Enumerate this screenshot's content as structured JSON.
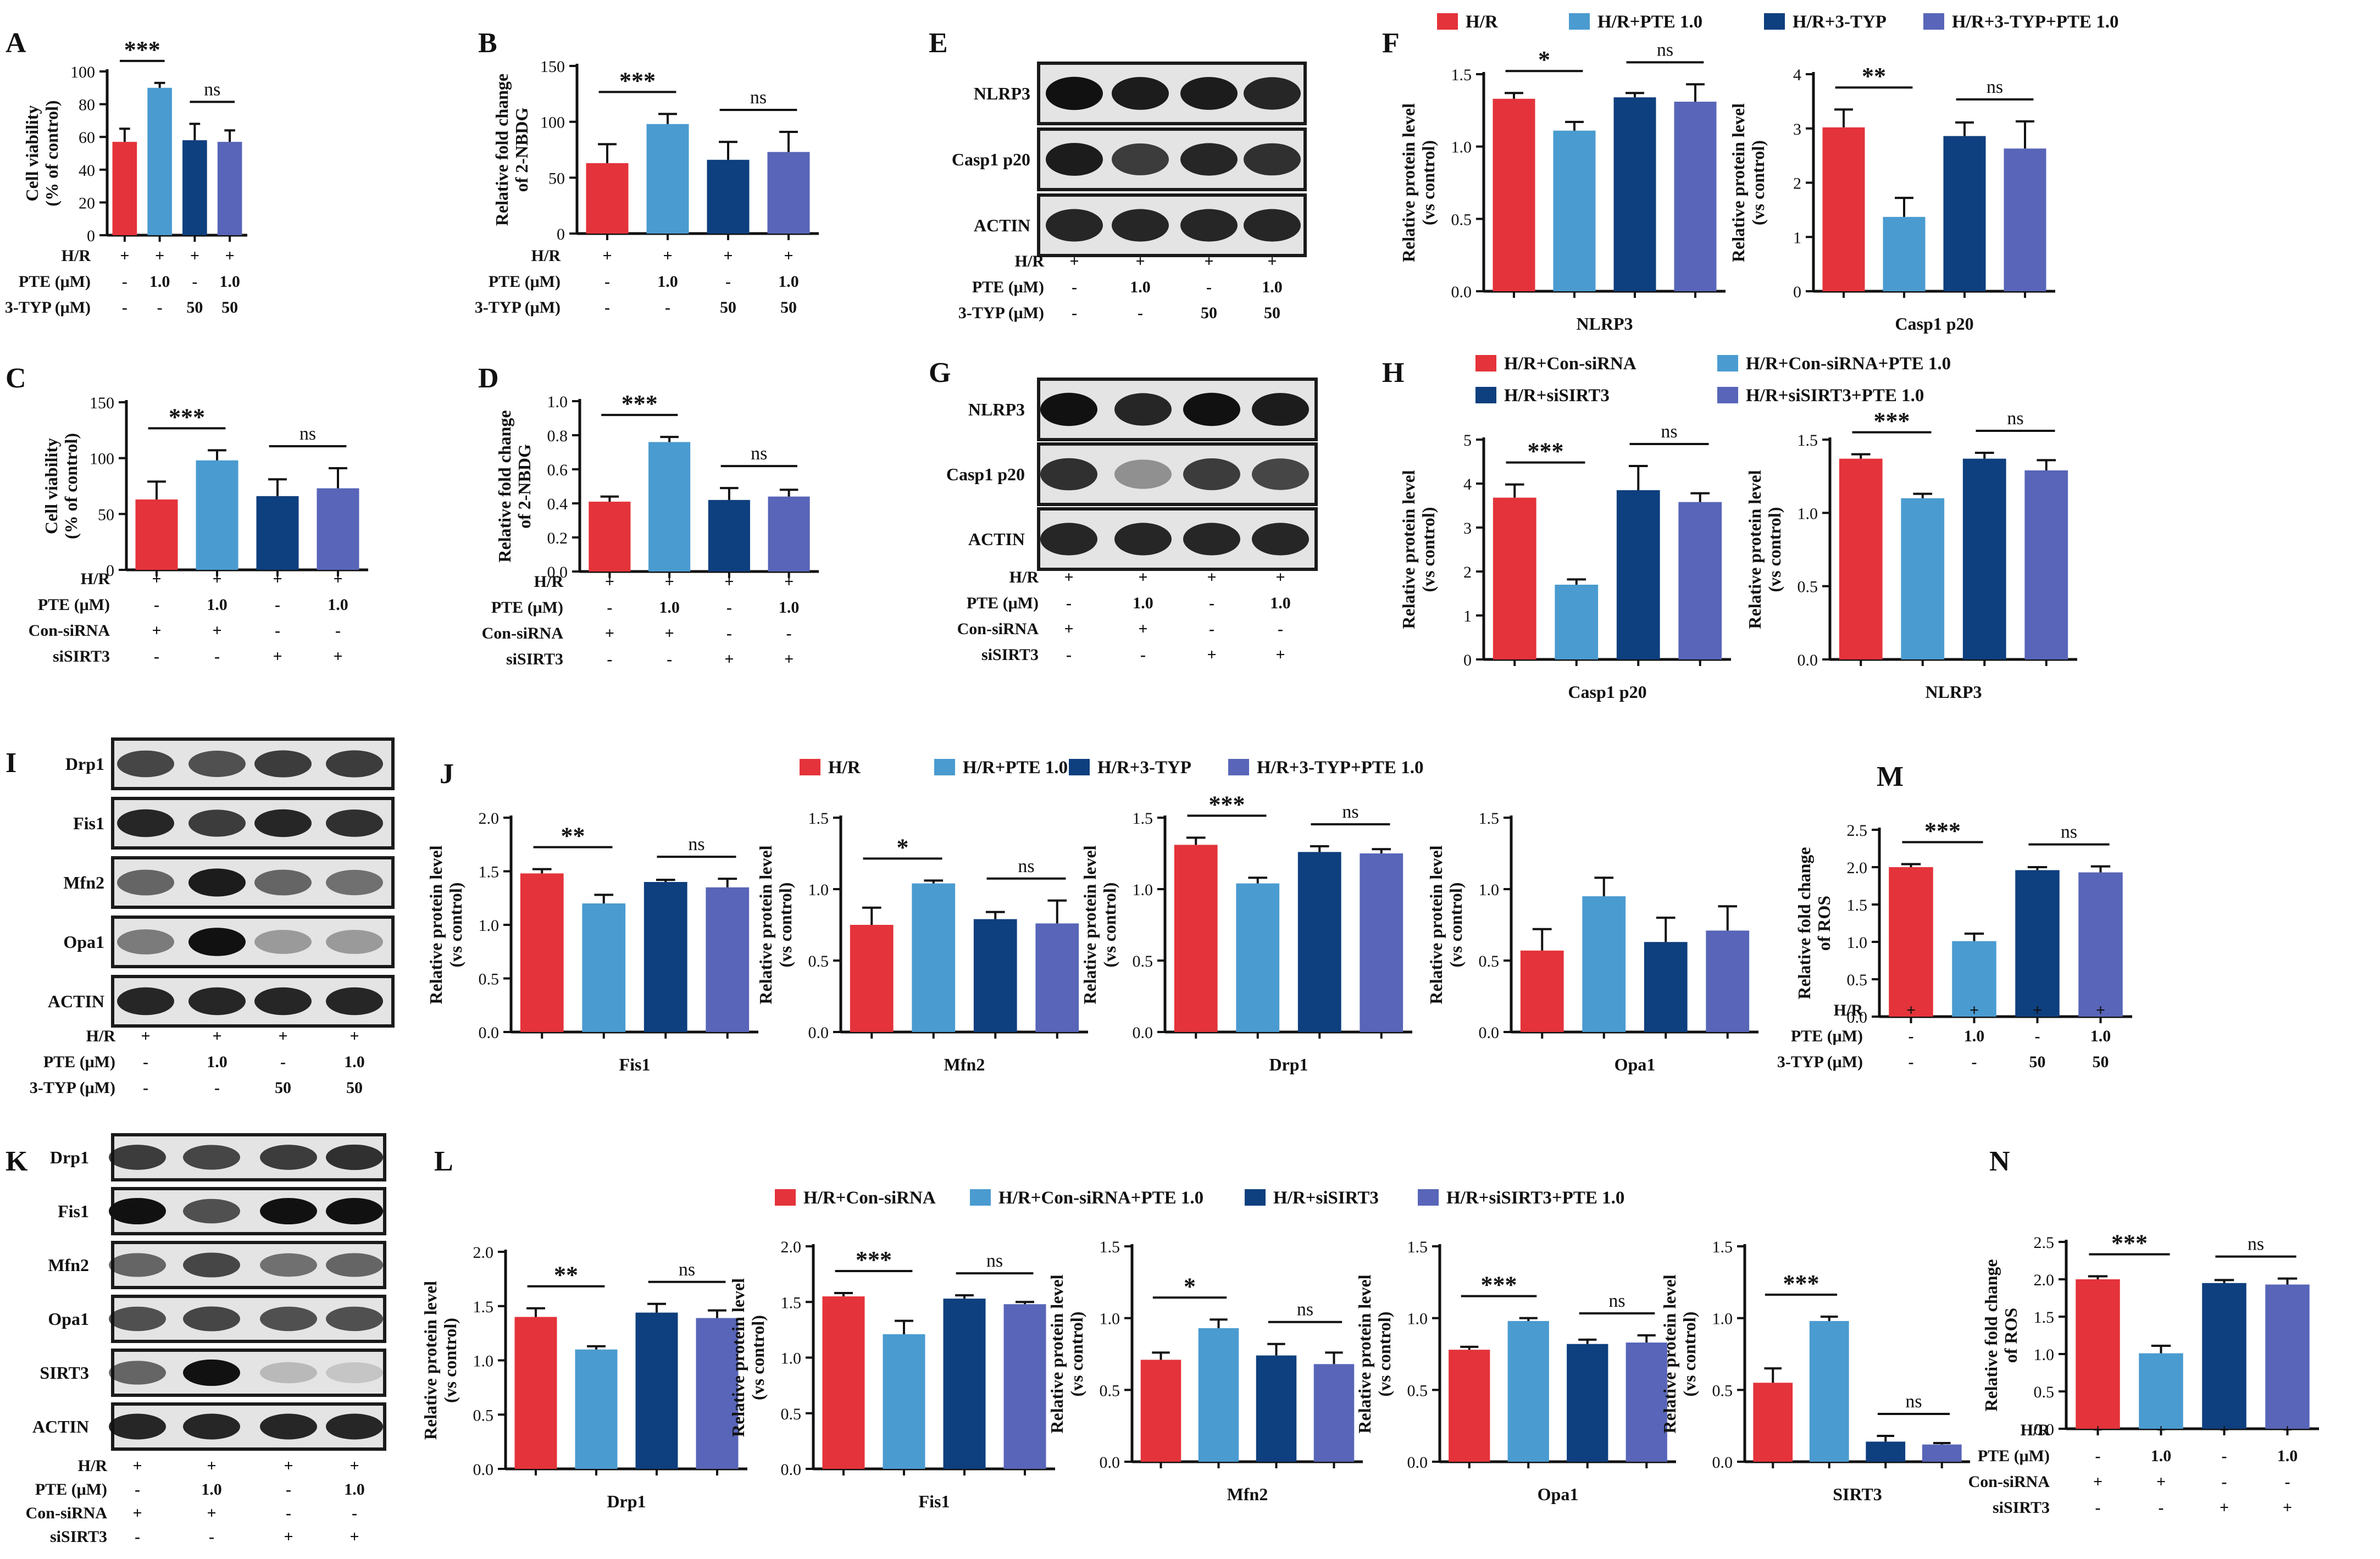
{
  "colors": {
    "HR": "#e4333a",
    "PTE": "#4a9bd0",
    "TYP": "#0e3f7e",
    "TYPPTE": "#5865b8",
    "axis": "#111111"
  },
  "legends": {
    "typ": [
      "H/R",
      "H/R+PTE 1.0",
      "H/R+3-TYP",
      "H/R+3-TYP+PTE 1.0"
    ],
    "si": [
      "H/R+Con-siRNA",
      "H/R+Con-siRNA+PTE 1.0",
      "H/R+siSIRT3",
      "H/R+siSIRT3+PTE 1.0"
    ]
  },
  "panel_letters": [
    "A",
    "B",
    "C",
    "D",
    "E",
    "F",
    "G",
    "H",
    "I",
    "J",
    "K",
    "L",
    "M",
    "N"
  ],
  "blots": {
    "E": {
      "bands": [
        "NLRP3",
        "Casp1 p20",
        "ACTIN"
      ],
      "rows": [
        [
          "H/R",
          "+",
          "+",
          "+",
          "+"
        ],
        [
          "PTE (μM)",
          "-",
          "1.0",
          "-",
          "1.0"
        ],
        [
          "3-TYP (μM)",
          "-",
          "-",
          "50",
          "50"
        ]
      ]
    },
    "G": {
      "bands": [
        "NLRP3",
        "Casp1 p20",
        "ACTIN"
      ],
      "rows": [
        [
          "H/R",
          "+",
          "+",
          "+",
          "+"
        ],
        [
          "PTE (μM)",
          "-",
          "1.0",
          "-",
          "1.0"
        ],
        [
          "Con-siRNA",
          "+",
          "+",
          "-",
          "-"
        ],
        [
          "siSIRT3",
          "-",
          "-",
          "+",
          "+"
        ]
      ]
    },
    "I": {
      "bands": [
        "Drp1",
        "Fis1",
        "Mfn2",
        "Opa1",
        "ACTIN"
      ],
      "rows": [
        [
          "H/R",
          "+",
          "+",
          "+",
          "+"
        ],
        [
          "PTE (μM)",
          "-",
          "1.0",
          "-",
          "1.0"
        ],
        [
          "3-TYP (μM)",
          "-",
          "-",
          "50",
          "50"
        ]
      ]
    },
    "K": {
      "bands": [
        "Drp1",
        "Fis1",
        "Mfn2",
        "Opa1",
        "SIRT3",
        "ACTIN"
      ],
      "rows": [
        [
          "H/R",
          "+",
          "+",
          "+",
          "+"
        ],
        [
          "PTE (μM)",
          "-",
          "1.0",
          "-",
          "1.0"
        ],
        [
          "Con-siRNA",
          "+",
          "+",
          "-",
          "-"
        ],
        [
          "siSIRT3",
          "-",
          "-",
          "+",
          "+"
        ]
      ]
    }
  },
  "chart_data": [
    {
      "panel": "A",
      "type": "bar",
      "ylabel": "Cell viability\n(% of control)",
      "ylim": [
        0,
        100
      ],
      "yticks": [
        0,
        20,
        40,
        60,
        80,
        100
      ],
      "ticklabels": [
        "0",
        "20",
        "40",
        "60",
        "80",
        "100"
      ],
      "values": [
        57,
        90,
        58,
        57
      ],
      "errors": [
        8,
        3,
        10,
        7
      ],
      "sig": [
        {
          "groups": [
            0,
            1
          ],
          "label": "***"
        },
        {
          "groups": [
            2,
            3
          ],
          "label": "ns"
        }
      ],
      "rows": [
        [
          "H/R",
          "+",
          "+",
          "+",
          "+"
        ],
        [
          "PTE (μM)",
          "-",
          "1.0",
          "-",
          "1.0"
        ],
        [
          "3-TYP (μM)",
          "-",
          "-",
          "50",
          "50"
        ]
      ]
    },
    {
      "panel": "B",
      "type": "bar",
      "ylabel": "Relative fold change\nof 2-NBDG",
      "ylim": [
        0,
        150
      ],
      "yticks": [
        0,
        50,
        100,
        150
      ],
      "ticklabels": [
        "0",
        "50",
        "100",
        "150"
      ],
      "values": [
        63,
        98,
        66,
        73
      ],
      "errors": [
        17,
        9,
        16,
        18
      ],
      "sig": [
        {
          "groups": [
            0,
            1
          ],
          "label": "***"
        },
        {
          "groups": [
            2,
            3
          ],
          "label": "ns"
        }
      ],
      "rows": [
        [
          "H/R",
          "+",
          "+",
          "+",
          "+"
        ],
        [
          "PTE (μM)",
          "-",
          "1.0",
          "-",
          "1.0"
        ],
        [
          "3-TYP (μM)",
          "-",
          "-",
          "50",
          "50"
        ]
      ]
    },
    {
      "panel": "C",
      "type": "bar",
      "ylabel": "Cell viability\n(% of control)",
      "ylim": [
        0,
        150
      ],
      "yticks": [
        0,
        50,
        100,
        150
      ],
      "ticklabels": [
        "0",
        "50",
        "100",
        "150"
      ],
      "values": [
        63,
        98,
        66,
        73
      ],
      "errors": [
        16,
        9,
        15,
        18
      ],
      "sig": [
        {
          "groups": [
            0,
            1
          ],
          "label": "***"
        },
        {
          "groups": [
            2,
            3
          ],
          "label": "ns"
        }
      ],
      "rows": [
        [
          "H/R",
          "+",
          "+",
          "+",
          "+"
        ],
        [
          "PTE (μM)",
          "-",
          "1.0",
          "-",
          "1.0"
        ],
        [
          "Con-siRNA",
          "+",
          "+",
          "-",
          "-"
        ],
        [
          "siSIRT3",
          "-",
          "-",
          "+",
          "+"
        ]
      ]
    },
    {
      "panel": "D",
      "type": "bar",
      "ylabel": "Relative fold change\nof 2-NBDG",
      "ylim": [
        0,
        1.0
      ],
      "yticks": [
        0,
        0.2,
        0.4,
        0.6,
        0.8,
        1.0
      ],
      "ticklabels": [
        "0.0",
        "0.2",
        "0.4",
        "0.6",
        "0.8",
        "1.0"
      ],
      "values": [
        0.41,
        0.76,
        0.42,
        0.44
      ],
      "errors": [
        0.03,
        0.03,
        0.07,
        0.04
      ],
      "sig": [
        {
          "groups": [
            0,
            1
          ],
          "label": "***"
        },
        {
          "groups": [
            2,
            3
          ],
          "label": "ns"
        }
      ],
      "rows": [
        [
          "H/R",
          "+",
          "+",
          "+",
          "+"
        ],
        [
          "PTE (μM)",
          "-",
          "1.0",
          "-",
          "1.0"
        ],
        [
          "Con-siRNA",
          "+",
          "+",
          "-",
          "-"
        ],
        [
          "siSIRT3",
          "-",
          "-",
          "+",
          "+"
        ]
      ]
    },
    {
      "panel": "F",
      "type": "bar",
      "xlabel": "NLRP3",
      "ylabel": "Relative protein level\n(vs control)",
      "ylim": [
        0,
        1.5
      ],
      "yticks": [
        0,
        0.5,
        1.0,
        1.5
      ],
      "ticklabels": [
        "0.0",
        "0.5",
        "1.0",
        "1.5"
      ],
      "values": [
        1.33,
        1.11,
        1.34,
        1.31
      ],
      "errors": [
        0.04,
        0.06,
        0.03,
        0.12
      ],
      "sig": [
        {
          "groups": [
            0,
            1
          ],
          "label": "*"
        },
        {
          "groups": [
            2,
            3
          ],
          "label": "ns"
        }
      ]
    },
    {
      "panel": "F2",
      "type": "bar",
      "xlabel": "Casp1 p20",
      "ylabel": "Relative protein level\n(vs control)",
      "ylim": [
        0,
        4
      ],
      "yticks": [
        0,
        1,
        2,
        3,
        4
      ],
      "ticklabels": [
        "0",
        "1",
        "2",
        "3",
        "4"
      ],
      "values": [
        3.02,
        1.37,
        2.86,
        2.63
      ],
      "errors": [
        0.33,
        0.35,
        0.25,
        0.5
      ],
      "sig": [
        {
          "groups": [
            0,
            1
          ],
          "label": "**"
        },
        {
          "groups": [
            2,
            3
          ],
          "label": "ns"
        }
      ]
    },
    {
      "panel": "H",
      "type": "bar",
      "xlabel": "Casp1 p20",
      "ylabel": "Relative protein level\n(vs control)",
      "ylim": [
        0,
        5
      ],
      "yticks": [
        0,
        1,
        2,
        3,
        4,
        5
      ],
      "ticklabels": [
        "0",
        "1",
        "2",
        "3",
        "4",
        "5"
      ],
      "values": [
        3.68,
        1.7,
        3.85,
        3.58
      ],
      "errors": [
        0.3,
        0.12,
        0.55,
        0.2
      ],
      "sig": [
        {
          "groups": [
            0,
            1
          ],
          "label": "***"
        },
        {
          "groups": [
            2,
            3
          ],
          "label": "ns"
        }
      ]
    },
    {
      "panel": "H2",
      "type": "bar",
      "xlabel": "NLRP3",
      "ylabel": "Relative protein level\n(vs control)",
      "ylim": [
        0,
        1.5
      ],
      "yticks": [
        0,
        0.5,
        1.0,
        1.5
      ],
      "ticklabels": [
        "0.0",
        "0.5",
        "1.0",
        "1.5"
      ],
      "values": [
        1.37,
        1.1,
        1.37,
        1.29
      ],
      "errors": [
        0.03,
        0.03,
        0.04,
        0.07
      ],
      "sig": [
        {
          "groups": [
            0,
            1
          ],
          "label": "***"
        },
        {
          "groups": [
            2,
            3
          ],
          "label": "ns"
        }
      ]
    },
    {
      "panel": "J1",
      "type": "bar",
      "xlabel": "Fis1",
      "ylabel": "Relative protein level\n(vs control)",
      "ylim": [
        0,
        2.0
      ],
      "yticks": [
        0,
        0.5,
        1.0,
        1.5,
        2.0
      ],
      "ticklabels": [
        "0.0",
        "0.5",
        "1.0",
        "1.5",
        "2.0"
      ],
      "values": [
        1.48,
        1.2,
        1.4,
        1.35
      ],
      "errors": [
        0.04,
        0.08,
        0.02,
        0.08
      ],
      "sig": [
        {
          "groups": [
            0,
            1
          ],
          "label": "**"
        },
        {
          "groups": [
            2,
            3
          ],
          "label": "ns"
        }
      ]
    },
    {
      "panel": "J2",
      "type": "bar",
      "xlabel": "Mfn2",
      "ylabel": "Relative protein level\n(vs control)",
      "ylim": [
        0,
        1.5
      ],
      "yticks": [
        0,
        0.5,
        1.0,
        1.5
      ],
      "ticklabels": [
        "0.0",
        "0.5",
        "1.0",
        "1.5"
      ],
      "values": [
        0.75,
        1.04,
        0.79,
        0.76
      ],
      "errors": [
        0.12,
        0.02,
        0.05,
        0.16
      ],
      "sig": [
        {
          "groups": [
            0,
            1
          ],
          "label": "*"
        },
        {
          "groups": [
            2,
            3
          ],
          "label": "ns"
        }
      ]
    },
    {
      "panel": "J3",
      "type": "bar",
      "xlabel": "Drp1",
      "ylabel": "Relative protein level\n(vs control)",
      "ylim": [
        0,
        1.5
      ],
      "yticks": [
        0,
        0.5,
        1.0,
        1.5
      ],
      "ticklabels": [
        "0.0",
        "0.5",
        "1.0",
        "1.5"
      ],
      "values": [
        1.31,
        1.04,
        1.26,
        1.25
      ],
      "errors": [
        0.05,
        0.04,
        0.04,
        0.03
      ],
      "sig": [
        {
          "groups": [
            0,
            1
          ],
          "label": "***"
        },
        {
          "groups": [
            2,
            3
          ],
          "label": "ns"
        }
      ]
    },
    {
      "panel": "J4",
      "type": "bar",
      "xlabel": "Opa1",
      "ylabel": "Relative protein level\n(vs control)",
      "ylim": [
        0,
        1.5
      ],
      "yticks": [
        0,
        0.5,
        1.0,
        1.5
      ],
      "ticklabels": [
        "0.0",
        "0.5",
        "1.0",
        "1.5"
      ],
      "values": [
        0.57,
        0.95,
        0.63,
        0.71
      ],
      "errors": [
        0.15,
        0.13,
        0.17,
        0.17
      ],
      "sig": []
    },
    {
      "panel": "M",
      "type": "bar",
      "ylabel": "Relative fold change\nof ROS",
      "ylim": [
        0,
        2.5
      ],
      "yticks": [
        0,
        0.5,
        1.0,
        1.5,
        2.0,
        2.5
      ],
      "ticklabels": [
        "0.0",
        "0.5",
        "1.0",
        "1.5",
        "2.0",
        "2.5"
      ],
      "values": [
        2.0,
        1.01,
        1.96,
        1.93
      ],
      "errors": [
        0.04,
        0.1,
        0.04,
        0.08
      ],
      "sig": [
        {
          "groups": [
            0,
            1
          ],
          "label": "***"
        },
        {
          "groups": [
            2,
            3
          ],
          "label": "ns"
        }
      ],
      "rows": [
        [
          "H/R",
          "+",
          "+",
          "+",
          "+"
        ],
        [
          "PTE (μM)",
          "-",
          "1.0",
          "-",
          "1.0"
        ],
        [
          "3-TYP (μM)",
          "-",
          "-",
          "50",
          "50"
        ]
      ]
    },
    {
      "panel": "L1",
      "type": "bar",
      "xlabel": "Drp1",
      "ylabel": "Relative protein level\n(vs control)",
      "ylim": [
        0,
        2.0
      ],
      "yticks": [
        0,
        0.5,
        1.0,
        1.5,
        2.0
      ],
      "ticklabels": [
        "0.0",
        "0.5",
        "1.0",
        "1.5",
        "2.0"
      ],
      "values": [
        1.4,
        1.1,
        1.44,
        1.39
      ],
      "errors": [
        0.08,
        0.03,
        0.08,
        0.07
      ],
      "sig": [
        {
          "groups": [
            0,
            1
          ],
          "label": "**"
        },
        {
          "groups": [
            2,
            3
          ],
          "label": "ns"
        }
      ]
    },
    {
      "panel": "L2",
      "type": "bar",
      "xlabel": "Fis1",
      "ylabel": "Relative protein level\n(vs control)",
      "ylim": [
        0,
        2.0
      ],
      "yticks": [
        0,
        0.5,
        1.0,
        1.5,
        2.0
      ],
      "ticklabels": [
        "0.0",
        "0.5",
        "1.0",
        "1.5",
        "2.0"
      ],
      "values": [
        1.55,
        1.21,
        1.53,
        1.48
      ],
      "errors": [
        0.03,
        0.12,
        0.03,
        0.02
      ],
      "sig": [
        {
          "groups": [
            0,
            1
          ],
          "label": "***"
        },
        {
          "groups": [
            2,
            3
          ],
          "label": "ns"
        }
      ]
    },
    {
      "panel": "L3",
      "type": "bar",
      "xlabel": "Mfn2",
      "ylabel": "Relative protein level\n(vs control)",
      "ylim": [
        0,
        1.5
      ],
      "yticks": [
        0,
        0.5,
        1.0,
        1.5
      ],
      "ticklabels": [
        "0.0",
        "0.5",
        "1.0",
        "1.5"
      ],
      "values": [
        0.71,
        0.93,
        0.74,
        0.68
      ],
      "errors": [
        0.05,
        0.06,
        0.08,
        0.08
      ],
      "sig": [
        {
          "groups": [
            0,
            1
          ],
          "label": "*"
        },
        {
          "groups": [
            2,
            3
          ],
          "label": "ns"
        }
      ]
    },
    {
      "panel": "L4",
      "type": "bar",
      "xlabel": "Opa1",
      "ylabel": "Relative protein level\n(vs control)",
      "ylim": [
        0,
        1.5
      ],
      "yticks": [
        0,
        0.5,
        1.0,
        1.5
      ],
      "ticklabels": [
        "0.0",
        "0.5",
        "1.0",
        "1.5"
      ],
      "values": [
        0.78,
        0.98,
        0.82,
        0.83
      ],
      "errors": [
        0.02,
        0.02,
        0.03,
        0.05
      ],
      "sig": [
        {
          "groups": [
            0,
            1
          ],
          "label": "***"
        },
        {
          "groups": [
            2,
            3
          ],
          "label": "ns"
        }
      ]
    },
    {
      "panel": "L5",
      "type": "bar",
      "xlabel": "SIRT3",
      "ylabel": "Relative protein level\n(vs control)",
      "ylim": [
        0,
        1.5
      ],
      "yticks": [
        0,
        0.5,
        1.0,
        1.5
      ],
      "ticklabels": [
        "0.0",
        "0.5",
        "1.0",
        "1.5"
      ],
      "values": [
        0.55,
        0.98,
        0.14,
        0.12
      ],
      "errors": [
        0.1,
        0.03,
        0.04,
        0.01
      ],
      "sig": [
        {
          "groups": [
            0,
            1
          ],
          "label": "***"
        },
        {
          "groups": [
            2,
            3
          ],
          "label": "ns"
        }
      ]
    },
    {
      "panel": "N",
      "type": "bar",
      "ylabel": "Relative fold change\nof ROS",
      "ylim": [
        0,
        2.5
      ],
      "yticks": [
        0,
        0.5,
        1.0,
        1.5,
        2.0,
        2.5
      ],
      "ticklabels": [
        "0.0",
        "0.5",
        "1.0",
        "1.5",
        "2.0",
        "2.5"
      ],
      "values": [
        2.0,
        1.01,
        1.95,
        1.93
      ],
      "errors": [
        0.04,
        0.1,
        0.04,
        0.08
      ],
      "sig": [
        {
          "groups": [
            0,
            1
          ],
          "label": "***"
        },
        {
          "groups": [
            2,
            3
          ],
          "label": "ns"
        }
      ],
      "rows": [
        [
          "H/R",
          "+",
          "+",
          "+",
          "+"
        ],
        [
          "PTE (μM)",
          "-",
          "1.0",
          "-",
          "1.0"
        ],
        [
          "Con-siRNA",
          "+",
          "+",
          "-",
          "-"
        ],
        [
          "siSIRT3",
          "-",
          "-",
          "+",
          "+"
        ]
      ]
    }
  ]
}
